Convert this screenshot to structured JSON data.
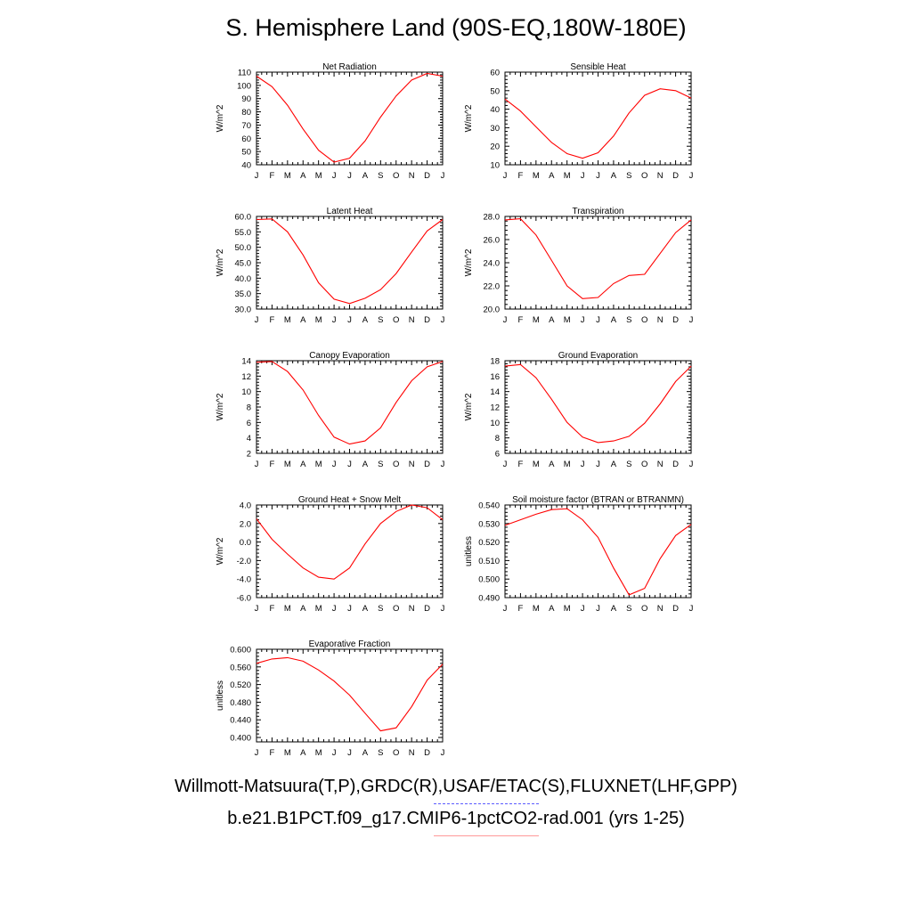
{
  "figure": {
    "title": "S. Hemisphere Land (90S-EQ,180W-180E)",
    "legend_obs": "Willmott-Matsuura(T,P),GRDC(R),USAF/ETAC(S),FLUXNET(LHF,GPP)",
    "legend_model": "b.e21.B1PCT.f09_g17.CMIP6-1pctCO2-rad.001 (yrs 1-25)",
    "colors": {
      "model_line": "#ff0000",
      "obs_swatch": "#5b5bff",
      "model_swatch": "#ff9999"
    }
  },
  "chart_data": [
    {
      "type": "line",
      "title": "Net Radiation",
      "ylabel": "W/m^2",
      "categories": [
        "J",
        "F",
        "M",
        "A",
        "M",
        "J",
        "J",
        "A",
        "S",
        "O",
        "N",
        "D",
        "J"
      ],
      "ylim": [
        40,
        110
      ],
      "yticks": [
        "40",
        "50",
        "60",
        "70",
        "80",
        "90",
        "100",
        "110"
      ],
      "series": [
        {
          "values": [
            107,
            99,
            85,
            67,
            51,
            42,
            45,
            58,
            76,
            92,
            104,
            109,
            107
          ]
        }
      ]
    },
    {
      "type": "line",
      "title": "Sensible Heat",
      "ylabel": "W/m^2",
      "categories": [
        "J",
        "F",
        "M",
        "A",
        "M",
        "J",
        "J",
        "A",
        "S",
        "O",
        "N",
        "D",
        "J"
      ],
      "ylim": [
        10,
        60
      ],
      "yticks": [
        "10",
        "20",
        "30",
        "40",
        "50",
        "60"
      ],
      "series": [
        {
          "values": [
            45.5,
            39,
            30.5,
            22,
            16,
            13.5,
            16.5,
            25.5,
            38,
            47.5,
            51,
            50,
            46
          ]
        }
      ]
    },
    {
      "type": "line",
      "title": "Latent Heat",
      "ylabel": "W/m^2",
      "categories": [
        "J",
        "F",
        "M",
        "A",
        "M",
        "J",
        "J",
        "A",
        "S",
        "O",
        "N",
        "D",
        "J"
      ],
      "ylim": [
        30,
        60
      ],
      "yticks": [
        "30.0",
        "35.0",
        "40.0",
        "45.0",
        "50.0",
        "55.0",
        "60.0"
      ],
      "series": [
        {
          "values": [
            59,
            59.2,
            55,
            47.5,
            38.5,
            33.2,
            31.8,
            33.5,
            36.3,
            41.5,
            48.5,
            55.3,
            59
          ]
        }
      ]
    },
    {
      "type": "line",
      "title": "Transpiration",
      "ylabel": "W/m^2",
      "categories": [
        "J",
        "F",
        "M",
        "A",
        "M",
        "J",
        "J",
        "A",
        "S",
        "O",
        "N",
        "D",
        "J"
      ],
      "ylim": [
        20,
        28
      ],
      "yticks": [
        "20.0",
        "22.0",
        "24.0",
        "26.0",
        "28.0"
      ],
      "series": [
        {
          "values": [
            27.7,
            27.8,
            26.4,
            24.2,
            22.0,
            20.9,
            21.0,
            22.2,
            22.9,
            23.0,
            24.8,
            26.6,
            27.7
          ]
        }
      ]
    },
    {
      "type": "line",
      "title": "Canopy Evaporation",
      "ylabel": "W/m^2",
      "categories": [
        "J",
        "F",
        "M",
        "A",
        "M",
        "J",
        "J",
        "A",
        "S",
        "O",
        "N",
        "D",
        "J"
      ],
      "ylim": [
        2,
        14
      ],
      "yticks": [
        "2",
        "4",
        "6",
        "8",
        "10",
        "12",
        "14"
      ],
      "series": [
        {
          "values": [
            13.8,
            13.9,
            12.6,
            10.2,
            6.9,
            4.1,
            3.2,
            3.6,
            5.3,
            8.6,
            11.4,
            13.2,
            13.9
          ]
        }
      ]
    },
    {
      "type": "line",
      "title": "Ground Evaporation",
      "ylabel": "W/m^2",
      "categories": [
        "J",
        "F",
        "M",
        "A",
        "M",
        "J",
        "J",
        "A",
        "S",
        "O",
        "N",
        "D",
        "J"
      ],
      "ylim": [
        6,
        18
      ],
      "yticks": [
        "6",
        "8",
        "10",
        "12",
        "14",
        "16",
        "18"
      ],
      "series": [
        {
          "values": [
            17.3,
            17.5,
            15.8,
            13.0,
            10.0,
            8.1,
            7.4,
            7.6,
            8.2,
            9.9,
            12.4,
            15.3,
            17.3
          ]
        }
      ]
    },
    {
      "type": "line",
      "title": "Ground Heat + Snow Melt",
      "ylabel": "W/m^2",
      "categories": [
        "J",
        "F",
        "M",
        "A",
        "M",
        "J",
        "J",
        "A",
        "S",
        "O",
        "N",
        "D",
        "J"
      ],
      "ylim": [
        -6,
        4
      ],
      "yticks": [
        "-6.0",
        "-4.0",
        "-2.0",
        "0.0",
        "2.0",
        "4.0"
      ],
      "series": [
        {
          "values": [
            2.5,
            0.3,
            -1.3,
            -2.8,
            -3.8,
            -4.0,
            -2.8,
            -0.2,
            2.0,
            3.3,
            4.0,
            3.7,
            2.4
          ]
        }
      ]
    },
    {
      "type": "line",
      "title": "Soil moisture factor (BTRAN or BTRANMN)",
      "ylabel": "unitless",
      "categories": [
        "J",
        "F",
        "M",
        "A",
        "M",
        "J",
        "J",
        "A",
        "S",
        "O",
        "N",
        "D",
        "J"
      ],
      "ylim": [
        0.49,
        0.54
      ],
      "yticks": [
        "0.490",
        "0.500",
        "0.510",
        "0.520",
        "0.530",
        "0.540"
      ],
      "series": [
        {
          "values": [
            0.529,
            0.532,
            0.535,
            0.5375,
            0.538,
            0.532,
            0.5225,
            0.506,
            0.4915,
            0.495,
            0.511,
            0.5235,
            0.5295
          ]
        }
      ]
    },
    {
      "type": "line",
      "title": "Evaporative Fraction",
      "ylabel": "unitless",
      "categories": [
        "J",
        "F",
        "M",
        "A",
        "M",
        "J",
        "J",
        "A",
        "S",
        "O",
        "N",
        "D",
        "J"
      ],
      "ylim": [
        0.39,
        0.6
      ],
      "yticks": [
        "0.400",
        "0.440",
        "0.480",
        "0.520",
        "0.560",
        "0.600"
      ],
      "ytick_values": [
        0.4,
        0.44,
        0.48,
        0.52,
        0.56,
        0.6
      ],
      "series": [
        {
          "values": [
            0.568,
            0.578,
            0.581,
            0.573,
            0.553,
            0.528,
            0.496,
            0.455,
            0.415,
            0.422,
            0.47,
            0.53,
            0.566
          ]
        }
      ]
    }
  ]
}
